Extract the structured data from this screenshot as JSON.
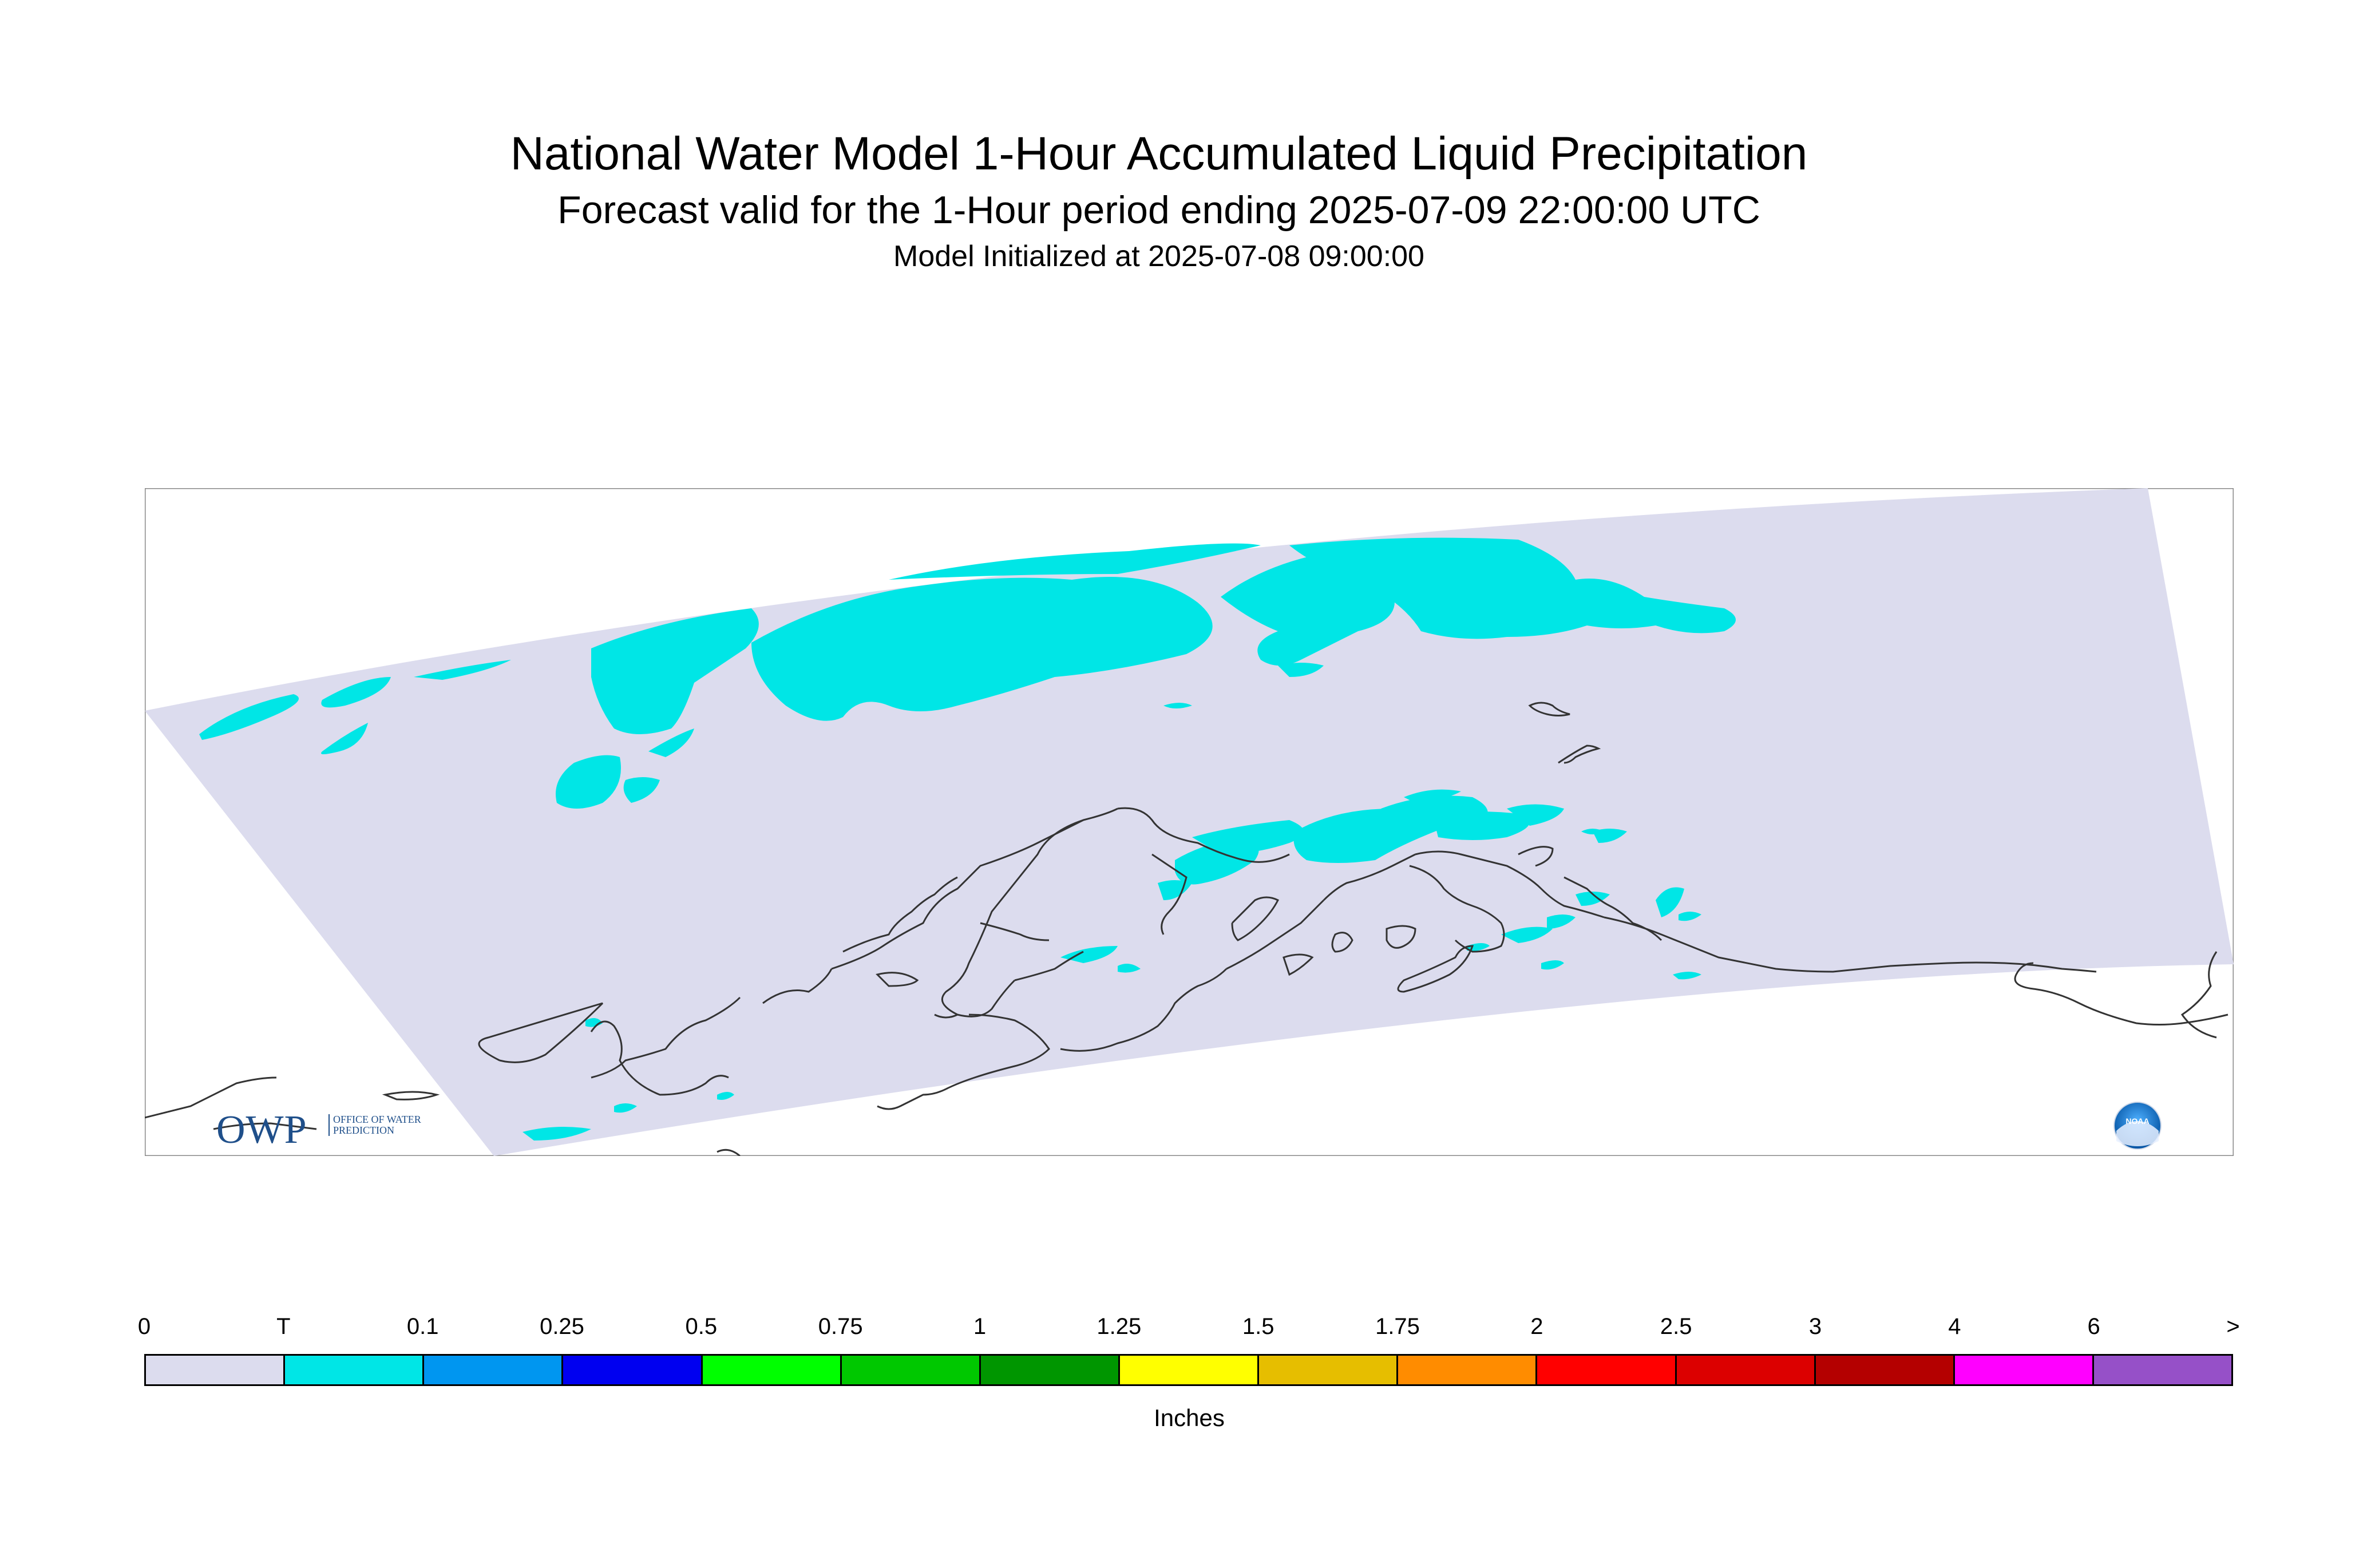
{
  "title": "National Water Model 1-Hour Accumulated Liquid Precipitation",
  "subtitle": "Forecast valid for the 1-Hour period ending 2025-07-09 22:00:00 UTC",
  "init_line": "Model Initialized at 2025-07-08 09:00:00",
  "logos": {
    "owp_letters": "OWP",
    "owp_text": "OFFICE OF WATER PREDICTION",
    "noaa_text": "NOAA"
  },
  "legend": {
    "labels": [
      "0",
      "T",
      "0.1",
      "0.25",
      "0.5",
      "0.75",
      "1",
      "1.25",
      "1.5",
      "1.75",
      "2",
      "2.5",
      "3",
      "4",
      "6",
      ">"
    ],
    "colors": [
      "#dcdcee",
      "#00e6e6",
      "#0096f0",
      "#0000f0",
      "#00ff00",
      "#00c800",
      "#009600",
      "#ffff00",
      "#e6be00",
      "#ff8c00",
      "#ff0000",
      "#dc0000",
      "#b40000",
      "#ff00ff",
      "#9650c8"
    ],
    "units": "Inches"
  },
  "map": {
    "domain_fill": "#dcdcee",
    "precip_color": "#00e6e6",
    "coast_color": "#333333"
  }
}
